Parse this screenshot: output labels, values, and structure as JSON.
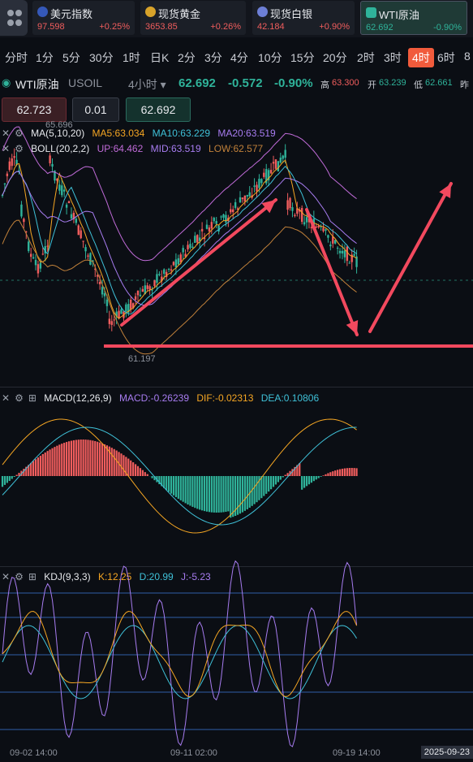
{
  "cards": [
    {
      "name": "美元指数",
      "price": "97.598",
      "change": "+0.25%",
      "flag": "us-flag-icon"
    },
    {
      "name": "现货黄金",
      "price": "3653.85",
      "change": "+0.26%",
      "flag": "gold-icon"
    },
    {
      "name": "现货白银",
      "price": "42.184",
      "change": "+0.90%",
      "flag": "silver-icon"
    },
    {
      "name": "WTI原油",
      "price": "62.692",
      "change": "-0.90%",
      "flag": "oil-icon"
    }
  ],
  "timeframes": [
    "分时",
    "1分",
    "5分",
    "30分",
    "1时",
    "日K",
    "2分",
    "3分",
    "4分",
    "10分",
    "15分",
    "20分",
    "2时",
    "3时",
    "4时",
    "6时",
    "8"
  ],
  "selected_timeframe": "4时",
  "ticker": {
    "name": "WTI原油",
    "code": "USOIL",
    "period": "4小时 ▾",
    "price": "62.692",
    "change": "-0.572",
    "change_pct": "-0.90%",
    "high_label": "高",
    "high": "63.300",
    "open_label": "开",
    "open": "63.239",
    "low_label": "低",
    "low": "62.661",
    "more_label": "昨"
  },
  "trade": {
    "bid": "62.723",
    "lot": "0.01",
    "ask": "62.692"
  },
  "main_legend": {
    "ma_label": "MA(5,10,20)",
    "ma5": "MA5:63.034",
    "ma10": "MA10:63.229",
    "ma20": "MA20:63.519",
    "boll_label": "BOLL(20,2,2)",
    "up": "UP:64.462",
    "mid": "MID:63.519",
    "low": "LOW:62.577",
    "high_mark": "65.696",
    "low_mark": "61.197"
  },
  "macd_legend": {
    "label": "MACD(12,26,9)",
    "macd": "MACD:-0.26239",
    "dif": "DIF:-0.02313",
    "dea": "DEA:0.10806"
  },
  "kdj_legend": {
    "label": "KDJ(9,3,3)",
    "k": "K:12.25",
    "d": "D:20.99",
    "j": "J:-5.23"
  },
  "dates": [
    "09-02 14:00",
    "09-11 02:00",
    "09-19 14:00"
  ],
  "current_date": "2025-09-23",
  "colors": {
    "up": "#f05d5d",
    "down": "#2fb39a",
    "accent": "#f15b3c",
    "ma5": "#f5a623",
    "ma10": "#3fc1d8",
    "ma20": "#a77cf0",
    "boll": "#c06bd8",
    "arrow": "#f2495e"
  }
}
